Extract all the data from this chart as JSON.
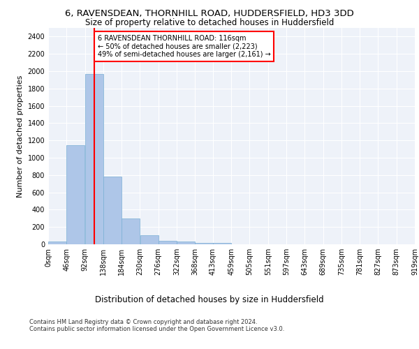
{
  "title_line1": "6, RAVENSDEAN, THORNHILL ROAD, HUDDERSFIELD, HD3 3DD",
  "title_line2": "Size of property relative to detached houses in Huddersfield",
  "xlabel": "Distribution of detached houses by size in Huddersfield",
  "ylabel": "Number of detached properties",
  "footer_line1": "Contains HM Land Registry data © Crown copyright and database right 2024.",
  "footer_line2": "Contains public sector information licensed under the Open Government Licence v3.0.",
  "bar_color": "#aec6e8",
  "bar_edge_color": "#7aafd4",
  "red_line_x": 116,
  "annotation_text": "6 RAVENSDEAN THORNHILL ROAD: 116sqm\n← 50% of detached houses are smaller (2,223)\n49% of semi-detached houses are larger (2,161) →",
  "bin_edges": [
    0,
    46,
    92,
    138,
    184,
    230,
    276,
    322,
    368,
    413,
    459,
    505,
    551,
    597,
    643,
    689,
    735,
    781,
    827,
    873,
    919
  ],
  "bar_heights": [
    30,
    1145,
    1970,
    780,
    300,
    105,
    40,
    30,
    20,
    15,
    0,
    0,
    0,
    0,
    0,
    0,
    0,
    0,
    0,
    0
  ],
  "ylim": [
    0,
    2500
  ],
  "yticks": [
    0,
    200,
    400,
    600,
    800,
    1000,
    1200,
    1400,
    1600,
    1800,
    2000,
    2200,
    2400
  ],
  "background_color": "#eef2f9",
  "grid_color": "#ffffff",
  "title_fontsize": 9.5,
  "subtitle_fontsize": 8.5,
  "ylabel_fontsize": 8,
  "xlabel_fontsize": 8.5,
  "tick_fontsize": 7,
  "footer_fontsize": 6,
  "annotation_fontsize": 7
}
